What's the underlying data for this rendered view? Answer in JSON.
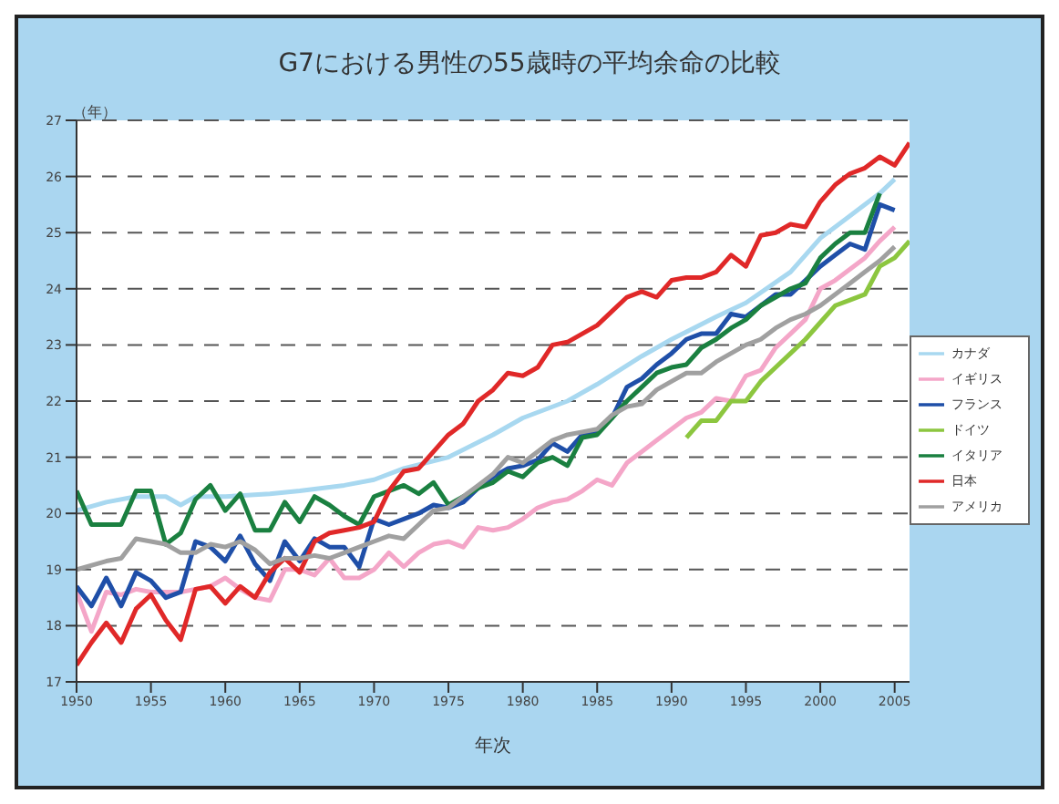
{
  "chart_data": {
    "type": "line",
    "title": "G7における男性の55歳時の平均余命の比較",
    "xlabel": "年次",
    "ylabel": "（年）",
    "xlim": [
      1950,
      2006
    ],
    "xticks": [
      1950,
      1955,
      1960,
      1965,
      1970,
      1975,
      1980,
      1985,
      1990,
      1995,
      2000,
      2005
    ],
    "ylim": [
      17,
      27
    ],
    "yticks": [
      17,
      18,
      19,
      20,
      21,
      22,
      23,
      24,
      25,
      26,
      27
    ],
    "grid": "y",
    "legend": "right",
    "marker": "none",
    "series": [
      {
        "name": "カナダ",
        "color": "#a8d8f0",
        "x": [
          1950,
          1952,
          1954,
          1956,
          1957,
          1958,
          1960,
          1963,
          1965,
          1968,
          1970,
          1972,
          1975,
          1978,
          1980,
          1983,
          1985,
          1988,
          1990,
          1993,
          1995,
          1998,
          2000,
          2002,
          2004,
          2005
        ],
        "values": [
          20.05,
          20.2,
          20.3,
          20.3,
          20.15,
          20.3,
          20.3,
          20.35,
          20.4,
          20.5,
          20.6,
          20.8,
          21.0,
          21.4,
          21.7,
          22.0,
          22.3,
          22.8,
          23.1,
          23.5,
          23.75,
          24.3,
          24.9,
          25.3,
          25.7,
          25.95
        ]
      },
      {
        "name": "イギリス",
        "color": "#f4a6c8",
        "x": [
          1950,
          1951,
          1952,
          1953,
          1954,
          1955,
          1956,
          1957,
          1958,
          1959,
          1960,
          1961,
          1962,
          1963,
          1964,
          1965,
          1966,
          1967,
          1968,
          1969,
          1970,
          1971,
          1972,
          1973,
          1974,
          1975,
          1976,
          1977,
          1978,
          1979,
          1980,
          1981,
          1982,
          1983,
          1984,
          1985,
          1986,
          1987,
          1988,
          1989,
          1990,
          1991,
          1992,
          1993,
          1994,
          1995,
          1996,
          1997,
          1998,
          1999,
          2000,
          2001,
          2002,
          2003,
          2004,
          2005
        ],
        "values": [
          18.6,
          17.9,
          18.6,
          18.55,
          18.65,
          18.6,
          18.6,
          18.6,
          18.65,
          18.7,
          18.85,
          18.65,
          18.5,
          18.45,
          19.0,
          19.0,
          18.9,
          19.2,
          18.85,
          18.85,
          19.0,
          19.3,
          19.05,
          19.3,
          19.45,
          19.5,
          19.4,
          19.75,
          19.7,
          19.75,
          19.9,
          20.1,
          20.2,
          20.25,
          20.4,
          20.6,
          20.5,
          20.9,
          21.1,
          21.3,
          21.5,
          21.7,
          21.8,
          22.05,
          22.0,
          22.45,
          22.55,
          22.95,
          23.2,
          23.45,
          24.0,
          24.15,
          24.35,
          24.55,
          24.85,
          25.1
        ]
      },
      {
        "name": "フランス",
        "color": "#1f4fa8",
        "x": [
          1950,
          1951,
          1952,
          1953,
          1954,
          1955,
          1956,
          1957,
          1958,
          1959,
          1960,
          1961,
          1962,
          1963,
          1964,
          1965,
          1966,
          1967,
          1968,
          1969,
          1970,
          1971,
          1972,
          1973,
          1974,
          1975,
          1976,
          1977,
          1978,
          1979,
          1980,
          1981,
          1982,
          1983,
          1984,
          1985,
          1986,
          1987,
          1988,
          1989,
          1990,
          1991,
          1992,
          1993,
          1994,
          1995,
          1996,
          1997,
          1998,
          1999,
          2000,
          2001,
          2002,
          2003,
          2004,
          2005
        ],
        "values": [
          18.7,
          18.35,
          18.85,
          18.35,
          18.95,
          18.8,
          18.5,
          18.6,
          19.5,
          19.4,
          19.15,
          19.6,
          19.1,
          18.8,
          19.5,
          19.15,
          19.55,
          19.4,
          19.4,
          19.05,
          19.9,
          19.8,
          19.9,
          20.0,
          20.15,
          20.1,
          20.2,
          20.45,
          20.65,
          20.8,
          20.85,
          20.95,
          21.25,
          21.1,
          21.4,
          21.45,
          21.7,
          22.25,
          22.4,
          22.65,
          22.85,
          23.1,
          23.2,
          23.2,
          23.55,
          23.5,
          23.7,
          23.9,
          23.9,
          24.15,
          24.4,
          24.6,
          24.8,
          24.7,
          25.5,
          25.4
        ]
      },
      {
        "name": "ドイツ",
        "color": "#8cc63f",
        "x": [
          1991,
          1992,
          1993,
          1994,
          1995,
          1996,
          1997,
          1998,
          1999,
          2000,
          2001,
          2002,
          2003,
          2004,
          2005,
          2006
        ],
        "values": [
          21.35,
          21.65,
          21.65,
          22.0,
          22.0,
          22.35,
          22.6,
          22.85,
          23.1,
          23.4,
          23.7,
          23.8,
          23.9,
          24.4,
          24.55,
          24.85
        ]
      },
      {
        "name": "イタリア",
        "color": "#1a8040",
        "x": [
          1950,
          1951,
          1952,
          1953,
          1954,
          1955,
          1956,
          1957,
          1958,
          1959,
          1960,
          1961,
          1962,
          1963,
          1964,
          1965,
          1966,
          1967,
          1968,
          1969,
          1970,
          1971,
          1972,
          1973,
          1974,
          1975,
          1976,
          1977,
          1978,
          1979,
          1980,
          1981,
          1982,
          1983,
          1984,
          1985,
          1986,
          1987,
          1988,
          1989,
          1990,
          1991,
          1992,
          1993,
          1994,
          1995,
          1996,
          1997,
          1998,
          1999,
          2000,
          2001,
          2002,
          2003,
          2004
        ],
        "values": [
          20.4,
          19.8,
          19.8,
          19.8,
          20.4,
          20.4,
          19.45,
          19.65,
          20.25,
          20.5,
          20.05,
          20.35,
          19.7,
          19.7,
          20.2,
          19.85,
          20.3,
          20.15,
          19.95,
          19.8,
          20.3,
          20.4,
          20.5,
          20.35,
          20.55,
          20.15,
          20.3,
          20.45,
          20.55,
          20.75,
          20.65,
          20.9,
          21.0,
          20.85,
          21.35,
          21.4,
          21.7,
          22.0,
          22.25,
          22.5,
          22.6,
          22.65,
          22.95,
          23.1,
          23.3,
          23.45,
          23.7,
          23.85,
          24.0,
          24.1,
          24.55,
          24.8,
          25.0,
          25.0,
          25.7
        ]
      },
      {
        "name": "日本",
        "color": "#e02828",
        "x": [
          1950,
          1951,
          1952,
          1953,
          1954,
          1955,
          1956,
          1957,
          1958,
          1959,
          1960,
          1961,
          1962,
          1963,
          1964,
          1965,
          1966,
          1967,
          1968,
          1969,
          1970,
          1971,
          1972,
          1973,
          1974,
          1975,
          1976,
          1977,
          1978,
          1979,
          1980,
          1981,
          1982,
          1983,
          1984,
          1985,
          1986,
          1987,
          1988,
          1989,
          1990,
          1991,
          1992,
          1993,
          1994,
          1995,
          1996,
          1997,
          1998,
          1999,
          2000,
          2001,
          2002,
          2003,
          2004,
          2005,
          2006
        ],
        "values": [
          17.3,
          17.7,
          18.05,
          17.7,
          18.3,
          18.55,
          18.1,
          17.75,
          18.65,
          18.7,
          18.4,
          18.7,
          18.5,
          18.95,
          19.2,
          18.95,
          19.5,
          19.65,
          19.7,
          19.75,
          19.85,
          20.4,
          20.75,
          20.8,
          21.1,
          21.4,
          21.6,
          22.0,
          22.2,
          22.5,
          22.45,
          22.6,
          23.0,
          23.05,
          23.2,
          23.35,
          23.6,
          23.85,
          23.95,
          23.85,
          24.15,
          24.2,
          24.2,
          24.3,
          24.6,
          24.4,
          24.95,
          25.0,
          25.15,
          25.1,
          25.55,
          25.85,
          26.05,
          26.15,
          26.35,
          26.2,
          26.6
        ]
      },
      {
        "name": "アメリカ",
        "color": "#a0a0a0",
        "x": [
          1950,
          1952,
          1953,
          1954,
          1955,
          1956,
          1957,
          1958,
          1959,
          1960,
          1961,
          1962,
          1963,
          1964,
          1965,
          1966,
          1967,
          1968,
          1969,
          1970,
          1971,
          1972,
          1973,
          1974,
          1975,
          1976,
          1977,
          1978,
          1979,
          1980,
          1981,
          1982,
          1983,
          1984,
          1985,
          1986,
          1987,
          1988,
          1989,
          1990,
          1991,
          1992,
          1993,
          1994,
          1995,
          1996,
          1997,
          1998,
          1999,
          2000,
          2001,
          2002,
          2003,
          2004,
          2005
        ],
        "values": [
          19.0,
          19.15,
          19.2,
          19.55,
          19.5,
          19.45,
          19.3,
          19.3,
          19.45,
          19.4,
          19.5,
          19.35,
          19.1,
          19.2,
          19.2,
          19.25,
          19.2,
          19.3,
          19.4,
          19.5,
          19.6,
          19.55,
          19.8,
          20.05,
          20.1,
          20.3,
          20.5,
          20.7,
          21.0,
          20.9,
          21.1,
          21.3,
          21.4,
          21.45,
          21.5,
          21.75,
          21.9,
          21.95,
          22.2,
          22.35,
          22.5,
          22.5,
          22.7,
          22.85,
          23.0,
          23.1,
          23.3,
          23.45,
          23.55,
          23.7,
          23.9,
          24.1,
          24.3,
          24.5,
          24.75
        ]
      }
    ]
  }
}
